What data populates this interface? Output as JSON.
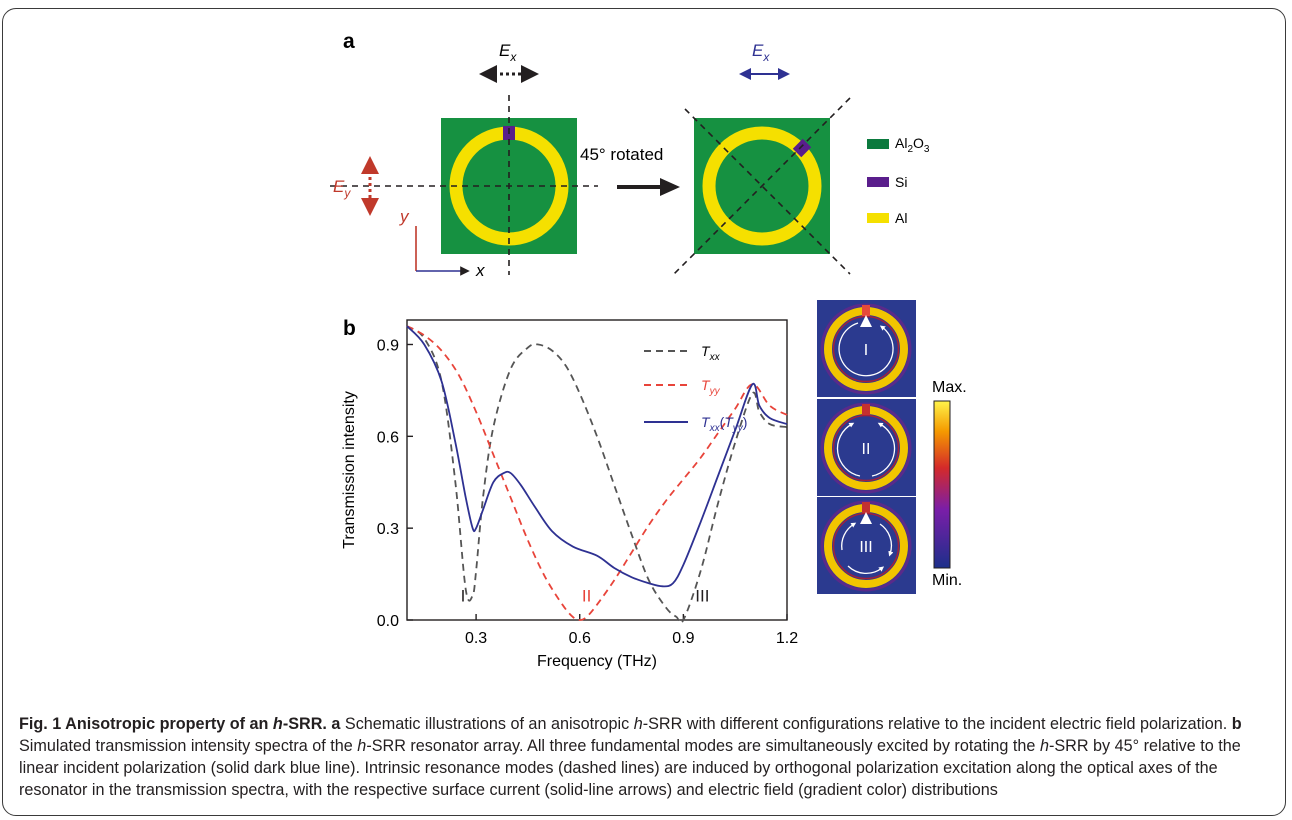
{
  "panel_a": {
    "label": "a",
    "field_x": "E",
    "field_x_sub": "x",
    "field_y": "E",
    "field_y_sub": "y",
    "axis_x": "x",
    "axis_y": "y",
    "rotation_label": "45° rotated",
    "legend": [
      {
        "base": "Al",
        "sub1": "2",
        "mid": "O",
        "sub2": "3",
        "color": "#0b7a3e"
      },
      {
        "base": "Si",
        "color": "#5a1e8c"
      },
      {
        "base": "Al",
        "color": "#f5e000"
      }
    ],
    "colors": {
      "substrate": "#169141",
      "ring": "#f5e000",
      "gap": "#5a1e8c",
      "ex_arrow_rotated": "#2e3192",
      "ey_arrow": "#c0392b"
    }
  },
  "panel_b": {
    "label": "b"
  },
  "chart_data": {
    "type": "line",
    "xlabel": "Frequency (THz)",
    "ylabel": "Transmission intensity",
    "xlim": [
      0.1,
      1.2
    ],
    "ylim": [
      0.0,
      0.98
    ],
    "xticks": [
      "0.3",
      "0.6",
      "0.9",
      "1.2"
    ],
    "yticks": [
      "0.0",
      "0.3",
      "0.6",
      "0.9"
    ],
    "series": [
      {
        "name": "Txx",
        "style": "dashed",
        "color": "#555555",
        "x": [
          0.1,
          0.15,
          0.2,
          0.24,
          0.27,
          0.29,
          0.3,
          0.32,
          0.35,
          0.4,
          0.45,
          0.48,
          0.52,
          0.56,
          0.6,
          0.65,
          0.7,
          0.75,
          0.8,
          0.85,
          0.88,
          0.9,
          0.95,
          1.0,
          1.05,
          1.1,
          1.12,
          1.15,
          1.2
        ],
        "y": [
          0.96,
          0.92,
          0.78,
          0.45,
          0.1,
          0.08,
          0.16,
          0.4,
          0.63,
          0.82,
          0.89,
          0.9,
          0.88,
          0.83,
          0.74,
          0.6,
          0.44,
          0.28,
          0.13,
          0.04,
          0.01,
          0.0,
          0.16,
          0.38,
          0.58,
          0.74,
          0.68,
          0.64,
          0.63
        ]
      },
      {
        "name": "Tyy",
        "style": "dashed",
        "color": "#e8443a",
        "x": [
          0.1,
          0.15,
          0.2,
          0.25,
          0.3,
          0.35,
          0.4,
          0.45,
          0.5,
          0.55,
          0.58,
          0.6,
          0.62,
          0.65,
          0.7,
          0.75,
          0.8,
          0.85,
          0.9,
          0.95,
          1.0,
          1.05,
          1.1,
          1.15,
          1.2
        ],
        "y": [
          0.96,
          0.93,
          0.88,
          0.8,
          0.68,
          0.54,
          0.4,
          0.26,
          0.14,
          0.05,
          0.01,
          0.0,
          0.01,
          0.05,
          0.13,
          0.22,
          0.31,
          0.39,
          0.46,
          0.53,
          0.61,
          0.69,
          0.77,
          0.7,
          0.67
        ]
      },
      {
        "name": "Txx(Tyy)",
        "style": "solid",
        "color": "#2e3192",
        "x": [
          0.1,
          0.15,
          0.2,
          0.24,
          0.27,
          0.29,
          0.3,
          0.32,
          0.35,
          0.38,
          0.4,
          0.43,
          0.47,
          0.52,
          0.58,
          0.65,
          0.7,
          0.75,
          0.8,
          0.84,
          0.87,
          0.9,
          0.95,
          1.0,
          1.05,
          1.1,
          1.12,
          1.15,
          1.2
        ],
        "y": [
          0.96,
          0.9,
          0.78,
          0.58,
          0.4,
          0.3,
          0.3,
          0.36,
          0.45,
          0.48,
          0.48,
          0.44,
          0.37,
          0.29,
          0.24,
          0.21,
          0.17,
          0.14,
          0.12,
          0.11,
          0.12,
          0.18,
          0.32,
          0.47,
          0.62,
          0.77,
          0.7,
          0.66,
          0.64
        ]
      }
    ],
    "legend": [
      {
        "base": "T",
        "sub": "xx",
        "color": "#555555",
        "style": "dashed"
      },
      {
        "base": "T",
        "sub": "yy",
        "color": "#e8443a",
        "style": "dashed"
      },
      {
        "base": "T",
        "sub": "xx",
        "paren_base": "T",
        "paren_sub": "yy",
        "color": "#2e3192",
        "style": "solid"
      }
    ],
    "annotations": [
      {
        "text": "I",
        "x": 0.262,
        "y": 0.05,
        "color": "#231f20"
      },
      {
        "text": "II",
        "x": 0.62,
        "y": 0.05,
        "color": "#e8443a"
      },
      {
        "text": "III",
        "x": 0.955,
        "y": 0.05,
        "color": "#231f20"
      }
    ]
  },
  "field_maps": {
    "modes": [
      "I",
      "II",
      "III"
    ],
    "colorbar_max": "Max.",
    "colorbar_min": "Min.",
    "colors": {
      "background": "#2b3a8f",
      "ring": "#f2c500",
      "edge": "#a3203a"
    }
  },
  "caption": {
    "lead": "Fig. 1 Anisotropic property of an ",
    "lead_italic": "h",
    "lead_end": "-SRR.",
    "a_label": "a",
    "a_text_1": " Schematic illustrations of an anisotropic ",
    "a_italic": "h",
    "a_text_2": "-SRR with different configurations relative to the incident electric field polarization. ",
    "b_label": "b",
    "b_text_1": " Simulated transmission intensity spectra of the ",
    "b_italic_1": "h",
    "b_text_2": "-SRR resonator array. All three fundamental modes are simultaneously excited by rotating the ",
    "b_italic_2": "h",
    "b_text_3": "-SRR by 45° relative to the linear incident polarization (solid dark blue line). Intrinsic resonance modes (dashed lines) are induced by orthogonal polarization excitation along the optical axes of the resonator in the transmission spectra, with the respective surface current (solid-line arrows) and electric field (gradient color) distributions"
  }
}
